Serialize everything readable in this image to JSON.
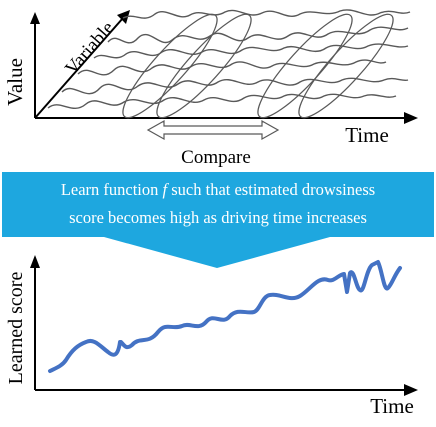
{
  "top_chart": {
    "y_label": "Value",
    "x_label": "Time",
    "depth_label": "Variable",
    "compare_label": "Compare"
  },
  "banner": {
    "line1_before": "Learn function ",
    "line1_f": "f",
    "line1_after": " such that estimated drowsiness",
    "line2": "score becomes high as driving time increases",
    "fill_color": "#1ea7df",
    "text_color": "#ffffff"
  },
  "bottom_chart": {
    "y_label": "Learned score",
    "x_label": "Time",
    "line_color": "#4472c4"
  },
  "colors": {
    "axis": "#000000",
    "series": "#595959"
  }
}
